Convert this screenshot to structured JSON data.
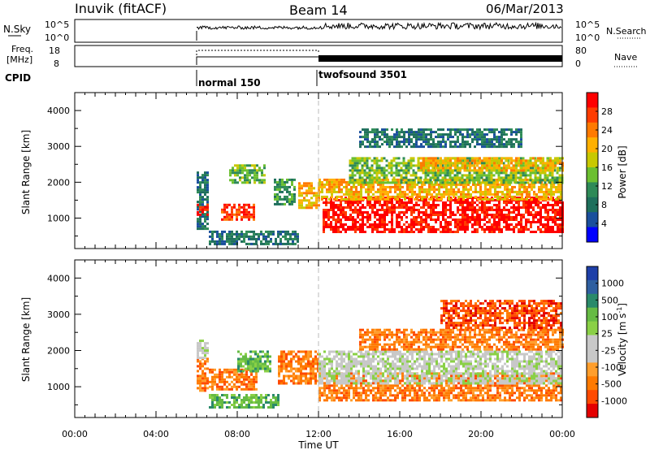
{
  "header": {
    "station": "Inuvik (fitACF)",
    "beam": "Beam 14",
    "date": "06/Mar/2013"
  },
  "panels": {
    "nsky": {
      "label": "N.Sky",
      "ticks": [
        "10^5",
        "10^0"
      ],
      "right_ticks": [
        "10^5",
        "10^0"
      ],
      "right_label": "N.Search"
    },
    "freq": {
      "label_top": "Freq.",
      "label_bottom": "[MHz]",
      "ticks": [
        "18",
        "8"
      ],
      "right_ticks": [
        "80",
        "0"
      ],
      "right_label": "Nave"
    },
    "cpid": {
      "label": "CPID",
      "modes": [
        "normal 150",
        "twofsound 3501"
      ]
    }
  },
  "power_colorbar": {
    "label": "Power [dB]",
    "ticks": [
      "28",
      "24",
      "20",
      "16",
      "12",
      "8",
      "4"
    ],
    "colors": [
      "#ff0000",
      "#ff3c00",
      "#ff7a00",
      "#ffb000",
      "#c8c800",
      "#6bbf30",
      "#2e8a57",
      "#1e6f5c",
      "#1a4f9c",
      "#0000ff"
    ]
  },
  "velocity_colorbar": {
    "label": "Velocity [m s",
    "label_sup": "-1",
    "label_end": "]",
    "ticks": [
      "1000",
      "500",
      "100",
      "25",
      "-25",
      "-100",
      "-500",
      "-1000"
    ],
    "colors": [
      "#1e3fa8",
      "#2f5fa0",
      "#2a8a6a",
      "#66bb44",
      "#8ad046",
      "#c8c8c8",
      "#c8c8c8",
      "#ff9e2c",
      "#ff7a00",
      "#ff4a00",
      "#e40000"
    ]
  },
  "chart_data": [
    {
      "type": "heatmap",
      "name": "power",
      "ylabel": "Slant Range [km]",
      "ylim": [
        150,
        4500
      ],
      "yticks": [
        1000,
        2000,
        3000,
        4000
      ],
      "xlim": [
        0,
        24
      ],
      "mode_change_hour": 12,
      "regions": [
        {
          "x0": 6.0,
          "x1": 6.6,
          "y0": 700,
          "y1": 2300,
          "level": 7
        },
        {
          "x0": 6.0,
          "x1": 6.6,
          "y0": 1100,
          "y1": 1400,
          "level": 0
        },
        {
          "x0": 7.2,
          "x1": 8.8,
          "y0": 950,
          "y1": 1400,
          "level": 1
        },
        {
          "x0": 7.6,
          "x1": 9.4,
          "y0": 2000,
          "y1": 2500,
          "level": 5
        },
        {
          "x0": 6.6,
          "x1": 11.0,
          "y0": 300,
          "y1": 650,
          "level": 7
        },
        {
          "x0": 9.8,
          "x1": 10.8,
          "y0": 1400,
          "y1": 2100,
          "level": 6
        },
        {
          "x0": 11.0,
          "x1": 12.0,
          "y0": 1300,
          "y1": 2000,
          "level": 3
        },
        {
          "x0": 12.2,
          "x1": 24.0,
          "y0": 600,
          "y1": 1600,
          "level": 0
        },
        {
          "x0": 12.0,
          "x1": 24.0,
          "y0": 1500,
          "y1": 2100,
          "level": 3
        },
        {
          "x0": 13.5,
          "x1": 24.0,
          "y0": 2000,
          "y1": 2700,
          "level": 5
        },
        {
          "x0": 17.0,
          "x1": 24.0,
          "y0": 2300,
          "y1": 2700,
          "level": 3
        },
        {
          "x0": 14.0,
          "x1": 22.0,
          "y0": 3000,
          "y1": 3500,
          "level": 7
        }
      ]
    },
    {
      "type": "heatmap",
      "name": "velocity",
      "ylabel": "Slant Range [km]",
      "ylim": [
        150,
        4500
      ],
      "yticks": [
        1000,
        2000,
        3000,
        4000
      ],
      "xlim": [
        0,
        24
      ],
      "xticks": [
        "00:00",
        "04:00",
        "08:00",
        "12:00",
        "16:00",
        "20:00",
        "00:00"
      ],
      "xlabel": "Time UT",
      "mode_change_hour": 12,
      "regions": [
        {
          "x0": 6.0,
          "x1": 6.6,
          "y0": 900,
          "y1": 1800,
          "level": 8
        },
        {
          "x0": 6.0,
          "x1": 6.6,
          "y0": 1800,
          "y1": 2300,
          "level": 5
        },
        {
          "x0": 6.6,
          "x1": 9.0,
          "y0": 900,
          "y1": 1500,
          "level": 8
        },
        {
          "x0": 6.6,
          "x1": 10.0,
          "y0": 400,
          "y1": 800,
          "level": 3
        },
        {
          "x0": 8.0,
          "x1": 9.6,
          "y0": 1400,
          "y1": 2000,
          "level": 3
        },
        {
          "x0": 10.0,
          "x1": 12.0,
          "y0": 1100,
          "y1": 2000,
          "level": 8
        },
        {
          "x0": 12.0,
          "x1": 24.0,
          "y0": 600,
          "y1": 1400,
          "level": 8
        },
        {
          "x0": 12.0,
          "x1": 24.0,
          "y0": 1100,
          "y1": 2000,
          "level": 5
        },
        {
          "x0": 14.0,
          "x1": 24.0,
          "y0": 2000,
          "y1": 2600,
          "level": 8
        },
        {
          "x0": 18.0,
          "x1": 24.0,
          "y0": 2600,
          "y1": 3400,
          "level": 9
        }
      ]
    }
  ]
}
